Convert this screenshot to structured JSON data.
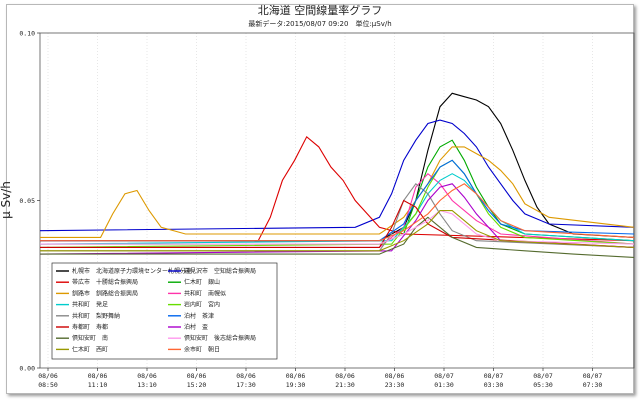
{
  "page": {
    "title": "北海道 空間線量率グラフ",
    "subtitle": "最新データ:2015/08/07 09:20　単位:μSv/h"
  },
  "chart_data": {
    "type": "line",
    "title": "北海道 空間線量率グラフ",
    "subtitle": "最新データ:2015/08/07 09:20　単位:μSv/h",
    "xlabel": "",
    "ylabel": "μ Sv/h",
    "ylim": [
      0,
      0.1
    ],
    "yticks": [
      "0.00",
      "0.05",
      "0.10"
    ],
    "grid": "vertical dotted",
    "legend_position": "lower-left inside plot",
    "x_ticks": [
      {
        "date": "08/06",
        "time": "08:50"
      },
      {
        "date": "08/06",
        "time": "11:10"
      },
      {
        "date": "08/06",
        "time": "13:10"
      },
      {
        "date": "08/06",
        "time": "15:20"
      },
      {
        "date": "08/06",
        "time": "17:30"
      },
      {
        "date": "08/06",
        "time": "19:30"
      },
      {
        "date": "08/06",
        "time": "21:30"
      },
      {
        "date": "08/06",
        "time": "23:30"
      },
      {
        "date": "08/07",
        "time": "01:30"
      },
      {
        "date": "08/07",
        "time": "03:30"
      },
      {
        "date": "08/07",
        "time": "05:30"
      },
      {
        "date": "08/07",
        "time": "07:30"
      }
    ],
    "x_range_hours": [
      0,
      24.5
    ],
    "series": [
      {
        "name": "札幌市　北海道原子力環境センター札幌分室",
        "color": "#000000",
        "points": [
          [
            0,
            0.038
          ],
          [
            14,
            0.038
          ],
          [
            15,
            0.042
          ],
          [
            15.5,
            0.05
          ],
          [
            16,
            0.065
          ],
          [
            16.5,
            0.078
          ],
          [
            17,
            0.082
          ],
          [
            17.5,
            0.081
          ],
          [
            18,
            0.08
          ],
          [
            18.5,
            0.078
          ],
          [
            19,
            0.073
          ],
          [
            19.5,
            0.065
          ],
          [
            20,
            0.056
          ],
          [
            20.5,
            0.048
          ],
          [
            21,
            0.043
          ],
          [
            22,
            0.04
          ],
          [
            24.5,
            0.039
          ]
        ]
      },
      {
        "name": "岩見沢市　空知総合振興局",
        "color": "#0000cc",
        "points": [
          [
            0,
            0.041
          ],
          [
            13,
            0.042
          ],
          [
            14,
            0.045
          ],
          [
            14.5,
            0.052
          ],
          [
            15,
            0.062
          ],
          [
            15.5,
            0.068
          ],
          [
            16,
            0.073
          ],
          [
            16.5,
            0.074
          ],
          [
            17,
            0.073
          ],
          [
            17.5,
            0.07
          ],
          [
            18,
            0.066
          ],
          [
            18.5,
            0.06
          ],
          [
            19,
            0.055
          ],
          [
            19.5,
            0.05
          ],
          [
            20,
            0.046
          ],
          [
            21,
            0.043
          ],
          [
            24.5,
            0.042
          ]
        ]
      },
      {
        "name": "帯広市　十勝総合振興局",
        "color": "#dd0000",
        "points": [
          [
            0,
            0.038
          ],
          [
            9,
            0.038
          ],
          [
            9.5,
            0.045
          ],
          [
            10,
            0.056
          ],
          [
            10.5,
            0.062
          ],
          [
            11,
            0.069
          ],
          [
            11.5,
            0.066
          ],
          [
            12,
            0.06
          ],
          [
            12.5,
            0.056
          ],
          [
            13,
            0.05
          ],
          [
            13.5,
            0.046
          ],
          [
            14,
            0.042
          ],
          [
            15,
            0.04
          ],
          [
            24.5,
            0.038
          ]
        ]
      },
      {
        "name": "仁木町　銀山",
        "color": "#00aa00",
        "points": [
          [
            0,
            0.037
          ],
          [
            14,
            0.037
          ],
          [
            15,
            0.04
          ],
          [
            15.5,
            0.05
          ],
          [
            16,
            0.06
          ],
          [
            16.5,
            0.066
          ],
          [
            17,
            0.068
          ],
          [
            17.5,
            0.062
          ],
          [
            18,
            0.054
          ],
          [
            18.5,
            0.048
          ],
          [
            19,
            0.043
          ],
          [
            20,
            0.04
          ],
          [
            24.5,
            0.038
          ]
        ]
      },
      {
        "name": "釧路市　釧路総合振興局",
        "color": "#dd9900",
        "points": [
          [
            0,
            0.039
          ],
          [
            2.5,
            0.039
          ],
          [
            3,
            0.046
          ],
          [
            3.5,
            0.052
          ],
          [
            4,
            0.053
          ],
          [
            4.5,
            0.047
          ],
          [
            5,
            0.042
          ],
          [
            6,
            0.04
          ],
          [
            14,
            0.04
          ],
          [
            15,
            0.045
          ],
          [
            16,
            0.055
          ],
          [
            16.5,
            0.062
          ],
          [
            17,
            0.066
          ],
          [
            17.5,
            0.066
          ],
          [
            18,
            0.064
          ],
          [
            18.5,
            0.062
          ],
          [
            19,
            0.059
          ],
          [
            19.5,
            0.055
          ],
          [
            20,
            0.049
          ],
          [
            21,
            0.045
          ],
          [
            24.5,
            0.042
          ]
        ]
      },
      {
        "name": "共和町　南幌似",
        "color": "#ff33aa",
        "points": [
          [
            0,
            0.036
          ],
          [
            14,
            0.036
          ],
          [
            15,
            0.042
          ],
          [
            15.5,
            0.054
          ],
          [
            16,
            0.058
          ],
          [
            16.5,
            0.055
          ],
          [
            17,
            0.05
          ],
          [
            18,
            0.044
          ],
          [
            19,
            0.04
          ],
          [
            24.5,
            0.037
          ]
        ]
      },
      {
        "name": "共和町　発足",
        "color": "#00cccc",
        "points": [
          [
            0,
            0.037
          ],
          [
            14.5,
            0.038
          ],
          [
            15.5,
            0.046
          ],
          [
            16,
            0.052
          ],
          [
            16.5,
            0.056
          ],
          [
            17,
            0.058
          ],
          [
            17.5,
            0.056
          ],
          [
            18,
            0.052
          ],
          [
            18.5,
            0.048
          ],
          [
            19,
            0.044
          ],
          [
            20,
            0.04
          ],
          [
            24.5,
            0.038
          ]
        ]
      },
      {
        "name": "岩内町　宮内",
        "color": "#66dd00",
        "points": [
          [
            0,
            0.036
          ],
          [
            14.5,
            0.037
          ],
          [
            15.5,
            0.046
          ],
          [
            16,
            0.054
          ],
          [
            16.5,
            0.06
          ],
          [
            17,
            0.062
          ],
          [
            17.5,
            0.058
          ],
          [
            18,
            0.052
          ],
          [
            18.5,
            0.046
          ],
          [
            19,
            0.042
          ],
          [
            20,
            0.039
          ],
          [
            24.5,
            0.037
          ]
        ]
      },
      {
        "name": "共和町　梨野舞納",
        "color": "#888888",
        "points": [
          [
            0,
            0.035
          ],
          [
            14,
            0.035
          ],
          [
            14.5,
            0.04
          ],
          [
            15,
            0.05
          ],
          [
            15.5,
            0.055
          ],
          [
            16,
            0.052
          ],
          [
            16.5,
            0.046
          ],
          [
            17,
            0.041
          ],
          [
            18,
            0.038
          ],
          [
            24.5,
            0.036
          ]
        ]
      },
      {
        "name": "泊村　茶津",
        "color": "#0066ee",
        "points": [
          [
            0,
            0.038
          ],
          [
            14,
            0.038
          ],
          [
            15,
            0.043
          ],
          [
            15.5,
            0.05
          ],
          [
            16,
            0.055
          ],
          [
            16.5,
            0.06
          ],
          [
            17,
            0.062
          ],
          [
            17.5,
            0.058
          ],
          [
            18,
            0.052
          ],
          [
            18.5,
            0.047
          ],
          [
            19,
            0.043
          ],
          [
            20,
            0.041
          ],
          [
            24.5,
            0.04
          ]
        ]
      },
      {
        "name": "寿都町　寿都",
        "color": "#cc0000",
        "points": [
          [
            0,
            0.036
          ],
          [
            14,
            0.036
          ],
          [
            14.5,
            0.042
          ],
          [
            15,
            0.05
          ],
          [
            15.5,
            0.048
          ],
          [
            16,
            0.043
          ],
          [
            17,
            0.039
          ],
          [
            24.5,
            0.036
          ]
        ]
      },
      {
        "name": "泊村　盃",
        "color": "#aa00cc",
        "points": [
          [
            0,
            0.034
          ],
          [
            14.5,
            0.035
          ],
          [
            15.5,
            0.044
          ],
          [
            16,
            0.05
          ],
          [
            16.5,
            0.054
          ],
          [
            17,
            0.055
          ],
          [
            17.5,
            0.051
          ],
          [
            18,
            0.046
          ],
          [
            18.5,
            0.042
          ],
          [
            19,
            0.038
          ],
          [
            24.5,
            0.036
          ]
        ]
      },
      {
        "name": "倶知安町　南",
        "color": "#556b2f",
        "points": [
          [
            0,
            0.034
          ],
          [
            14,
            0.034
          ],
          [
            15,
            0.037
          ],
          [
            15.5,
            0.042
          ],
          [
            16,
            0.045
          ],
          [
            16.5,
            0.042
          ],
          [
            17,
            0.039
          ],
          [
            18,
            0.036
          ],
          [
            20,
            0.035
          ],
          [
            22,
            0.034
          ],
          [
            24.5,
            0.033
          ]
        ]
      },
      {
        "name": "倶知安町　後志総合振興局",
        "color": "#ff99ee",
        "points": [
          [
            0,
            0.037
          ],
          [
            14,
            0.037
          ],
          [
            15,
            0.04
          ],
          [
            16,
            0.044
          ],
          [
            16.5,
            0.047
          ],
          [
            17,
            0.046
          ],
          [
            17.5,
            0.043
          ],
          [
            18,
            0.04
          ],
          [
            19,
            0.038
          ],
          [
            24.5,
            0.037
          ]
        ]
      },
      {
        "name": "仁木町　西町",
        "color": "#999900",
        "points": [
          [
            0,
            0.035
          ],
          [
            14,
            0.035
          ],
          [
            15,
            0.038
          ],
          [
            16,
            0.043
          ],
          [
            16.5,
            0.047
          ],
          [
            17,
            0.047
          ],
          [
            17.5,
            0.044
          ],
          [
            18,
            0.041
          ],
          [
            19,
            0.038
          ],
          [
            24.5,
            0.036
          ]
        ]
      },
      {
        "name": "余市町　朝日",
        "color": "#ff6633",
        "points": [
          [
            0,
            0.038
          ],
          [
            14,
            0.038
          ],
          [
            15,
            0.041
          ],
          [
            16,
            0.046
          ],
          [
            16.5,
            0.05
          ],
          [
            17,
            0.053
          ],
          [
            17.5,
            0.055
          ],
          [
            18,
            0.052
          ],
          [
            18.5,
            0.048
          ],
          [
            19,
            0.044
          ],
          [
            20,
            0.041
          ],
          [
            24.5,
            0.039
          ]
        ]
      }
    ]
  },
  "legend": [
    {
      "label": "札幌市　北海道原子力環境センター札幌分室",
      "color": "#000000"
    },
    {
      "label": "岩見沢市　空知総合振興局",
      "color": "#0000cc"
    },
    {
      "label": "帯広市　十勝総合振興局",
      "color": "#dd0000"
    },
    {
      "label": "仁木町　銀山",
      "color": "#00aa00"
    },
    {
      "label": "釧路市　釧路総合振興局",
      "color": "#dd9900"
    },
    {
      "label": "共和町　南幌似",
      "color": "#ff33aa"
    },
    {
      "label": "共和町　発足",
      "color": "#00cccc"
    },
    {
      "label": "岩内町　宮内",
      "color": "#66dd00"
    },
    {
      "label": "共和町　梨野舞納",
      "color": "#888888"
    },
    {
      "label": "泊村　茶津",
      "color": "#0066ee"
    },
    {
      "label": "寿都町　寿都",
      "color": "#cc0000"
    },
    {
      "label": "泊村　盃",
      "color": "#aa00cc"
    },
    {
      "label": "倶知安町　南",
      "color": "#556b2f"
    },
    {
      "label": "倶知安町　後志総合振興局",
      "color": "#ff99ee"
    },
    {
      "label": "仁木町　西町",
      "color": "#999900"
    },
    {
      "label": "余市町　朝日",
      "color": "#ff6633"
    }
  ]
}
